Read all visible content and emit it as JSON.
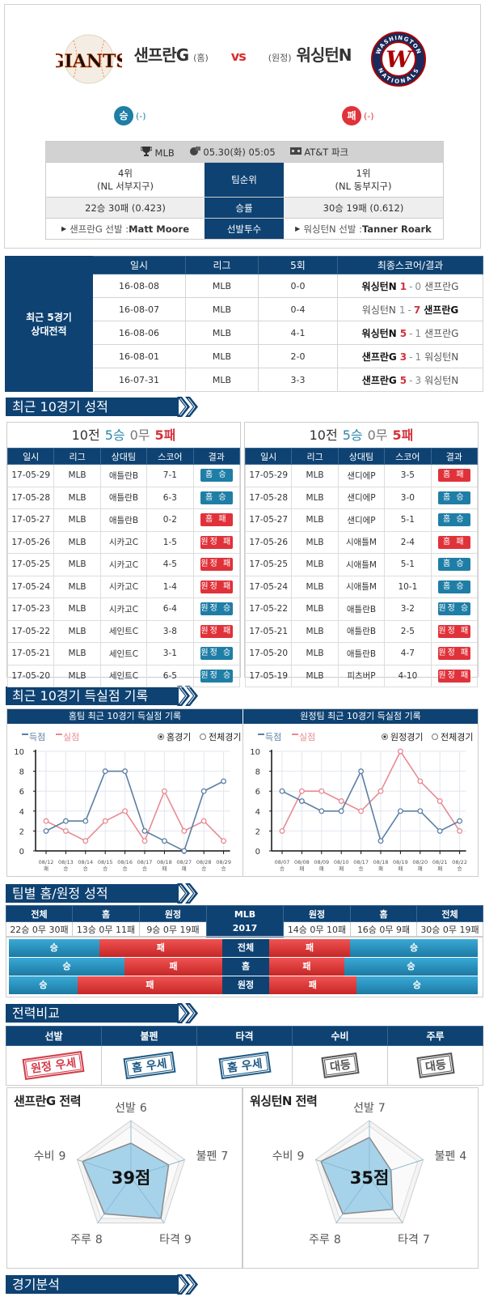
{
  "match": {
    "home": "샌프란G",
    "home_tag": "(홈)",
    "vs": "vs",
    "away_tag": "(원정)",
    "away": "워싱턴N",
    "home_logo_text": "GIANTS",
    "away_logo_ring_top": "WASHINGTON",
    "away_logo_ring_bottom": "NATIONALS",
    "away_logo_letter": "W",
    "home_result": "승",
    "home_result_note": "(-)",
    "away_result": "패",
    "away_result_note": "(-)",
    "colors": {
      "navy": "#0e4272",
      "win": "#1f7ea6",
      "loss": "#e0323a"
    }
  },
  "info": {
    "league": "MLB",
    "datetime": "05.30(화) 05:05",
    "stadium": "AT&T 파크",
    "rank_label": "팀순위",
    "home_rank": "4위",
    "home_div": "(NL 서부지구)",
    "away_rank": "1위",
    "away_div": "(NL 동부지구)",
    "pct_label": "승률",
    "home_record": "22승 30패 (0.423)",
    "away_record": "30승 19패 (0.612)",
    "pitcher_label": "선발투수",
    "home_pitcher_prefix": "샌프란G 선발 : ",
    "home_pitcher": "Matt Moore",
    "away_pitcher_prefix": "워싱턴N 선발 : ",
    "away_pitcher": "Tanner Roark"
  },
  "h2h": {
    "label_line1": "최근 5경기",
    "label_line2": "상대전적",
    "headers": [
      "일시",
      "리그",
      "5회",
      "최종스코어/결과"
    ],
    "rows": [
      {
        "date": "16-08-08",
        "league": "MLB",
        "inning5": "0-0",
        "left": "워싱턴N",
        "left_score": "1",
        "sep": "-",
        "right_score": "0",
        "right": "샌프란G",
        "winner": "left"
      },
      {
        "date": "16-08-07",
        "league": "MLB",
        "inning5": "0-4",
        "left": "워싱턴N",
        "left_score": "1",
        "sep": "-",
        "right_score": "7",
        "right": "샌프란G",
        "winner": "right"
      },
      {
        "date": "16-08-06",
        "league": "MLB",
        "inning5": "4-1",
        "left": "워싱턴N",
        "left_score": "5",
        "sep": "-",
        "right_score": "1",
        "right": "샌프란G",
        "winner": "left"
      },
      {
        "date": "16-08-01",
        "league": "MLB",
        "inning5": "2-0",
        "left": "샌프란G",
        "left_score": "3",
        "sep": "-",
        "right_score": "1",
        "right": "워싱턴N",
        "winner": "left"
      },
      {
        "date": "16-07-31",
        "league": "MLB",
        "inning5": "3-3",
        "left": "샌프란G",
        "left_score": "5",
        "sep": "-",
        "right_score": "3",
        "right": "워싱턴N",
        "winner": "left"
      }
    ]
  },
  "recent": {
    "section_title": "최근 10경기 성적",
    "headers": [
      "일시",
      "리그",
      "상대팀",
      "스코어",
      "결과"
    ],
    "teams": [
      {
        "summary": {
          "total": "10전",
          "w": "5승",
          "d": "0무",
          "l": "5패"
        },
        "rows": [
          {
            "date": "17-05-29",
            "league": "MLB",
            "opp": "애틀란B",
            "score": "7-1",
            "result": "홈 승",
            "outcome": "win"
          },
          {
            "date": "17-05-28",
            "league": "MLB",
            "opp": "애틀란B",
            "score": "6-3",
            "result": "홈 승",
            "outcome": "win"
          },
          {
            "date": "17-05-27",
            "league": "MLB",
            "opp": "애틀란B",
            "score": "0-2",
            "result": "홈 패",
            "outcome": "loss"
          },
          {
            "date": "17-05-26",
            "league": "MLB",
            "opp": "시카고C",
            "score": "1-5",
            "result": "원정 패",
            "outcome": "loss"
          },
          {
            "date": "17-05-25",
            "league": "MLB",
            "opp": "시카고C",
            "score": "4-5",
            "result": "원정 패",
            "outcome": "loss"
          },
          {
            "date": "17-05-24",
            "league": "MLB",
            "opp": "시카고C",
            "score": "1-4",
            "result": "원정 패",
            "outcome": "loss"
          },
          {
            "date": "17-05-23",
            "league": "MLB",
            "opp": "시카고C",
            "score": "6-4",
            "result": "원정 승",
            "outcome": "win"
          },
          {
            "date": "17-05-22",
            "league": "MLB",
            "opp": "세인트C",
            "score": "3-8",
            "result": "원정 패",
            "outcome": "loss"
          },
          {
            "date": "17-05-21",
            "league": "MLB",
            "opp": "세인트C",
            "score": "3-1",
            "result": "원정 승",
            "outcome": "win"
          },
          {
            "date": "17-05-20",
            "league": "MLB",
            "opp": "세인트C",
            "score": "6-5",
            "result": "원정 승",
            "outcome": "win"
          }
        ]
      },
      {
        "summary": {
          "total": "10전",
          "w": "5승",
          "d": "0무",
          "l": "5패"
        },
        "rows": [
          {
            "date": "17-05-29",
            "league": "MLB",
            "opp": "샌디에P",
            "score": "3-5",
            "result": "홈 패",
            "outcome": "loss"
          },
          {
            "date": "17-05-28",
            "league": "MLB",
            "opp": "샌디에P",
            "score": "3-0",
            "result": "홈 승",
            "outcome": "win"
          },
          {
            "date": "17-05-27",
            "league": "MLB",
            "opp": "샌디에P",
            "score": "5-1",
            "result": "홈 승",
            "outcome": "win"
          },
          {
            "date": "17-05-26",
            "league": "MLB",
            "opp": "시애틀M",
            "score": "2-4",
            "result": "홈 패",
            "outcome": "loss"
          },
          {
            "date": "17-05-25",
            "league": "MLB",
            "opp": "시애틀M",
            "score": "5-1",
            "result": "홈 승",
            "outcome": "win"
          },
          {
            "date": "17-05-24",
            "league": "MLB",
            "opp": "시애틀M",
            "score": "10-1",
            "result": "홈 승",
            "outcome": "win"
          },
          {
            "date": "17-05-22",
            "league": "MLB",
            "opp": "애틀란B",
            "score": "3-2",
            "result": "원정 승",
            "outcome": "win"
          },
          {
            "date": "17-05-21",
            "league": "MLB",
            "opp": "애틀란B",
            "score": "2-5",
            "result": "원정 패",
            "outcome": "loss"
          },
          {
            "date": "17-05-20",
            "league": "MLB",
            "opp": "애틀란B",
            "score": "4-7",
            "result": "원정 패",
            "outcome": "loss"
          },
          {
            "date": "17-05-19",
            "league": "MLB",
            "opp": "피츠버P",
            "score": "4-10",
            "result": "원정 패",
            "outcome": "loss"
          }
        ]
      }
    ]
  },
  "scoring_section_title": "최근 10경기 득실점 기록",
  "chart_data": [
    {
      "type": "line",
      "title": "홈팀 최근 10경기 득실점 기록",
      "radio": [
        "홈경기",
        "전체경기"
      ],
      "radio_selected": 0,
      "x": [
        "08/12",
        "08/13",
        "08/14",
        "08/15",
        "08/16",
        "08/17",
        "08/18",
        "08/27",
        "08/28",
        "08/29"
      ],
      "x_results": [
        "패",
        "승",
        "승",
        "승",
        "승",
        "승",
        "패",
        "패",
        "승",
        "승"
      ],
      "ylim": [
        0,
        10
      ],
      "yticks": [
        0,
        2,
        4,
        6,
        8,
        10
      ],
      "grid": true,
      "legend": "top-left",
      "series": [
        {
          "name": "득점",
          "color": "#5b7fa3",
          "values": [
            2,
            3,
            3,
            8,
            8,
            2,
            1,
            0,
            6,
            7
          ]
        },
        {
          "name": "실점",
          "color": "#e88a92",
          "values": [
            3,
            2,
            1,
            3,
            4,
            1,
            6,
            2,
            3,
            1
          ]
        }
      ]
    },
    {
      "type": "line",
      "title": "원정팀 최근 10경기 득실점 기록",
      "radio": [
        "원정경기",
        "전체경기"
      ],
      "radio_selected": 0,
      "x": [
        "08/07",
        "08/08",
        "08/09",
        "08/10",
        "08/17",
        "08/18",
        "08/19",
        "08/20",
        "08/21",
        "08/22"
      ],
      "x_results": [
        "승",
        "패",
        "패",
        "패",
        "승",
        "패",
        "패",
        "패",
        "패",
        "승"
      ],
      "ylim": [
        0,
        10
      ],
      "yticks": [
        0,
        2,
        4,
        6,
        8,
        10
      ],
      "grid": true,
      "legend": "top-left",
      "series": [
        {
          "name": "득점",
          "color": "#5b7fa3",
          "values": [
            6,
            5,
            4,
            4,
            8,
            1,
            4,
            4,
            2,
            3
          ]
        },
        {
          "name": "실점",
          "color": "#e88a92",
          "values": [
            2,
            6,
            6,
            5,
            4,
            6,
            10,
            7,
            5,
            2
          ]
        }
      ]
    }
  ],
  "team_records": {
    "section_title": "팀별 홈/원정 성적",
    "center": [
      "MLB",
      "2017"
    ],
    "home_headers": [
      "전체",
      "홈",
      "원정"
    ],
    "away_headers": [
      "원정",
      "홈",
      "전체"
    ],
    "home_values": [
      "22승 0무 30패",
      "13승 0무 11패",
      "9승 0무 19패"
    ],
    "away_values": [
      "14승 0무 10패",
      "16승 0무 9패",
      "30승 0무 19패"
    ],
    "win_label": "승",
    "loss_label": "패",
    "bars": [
      {
        "label": "전체",
        "home": [
          22,
          30
        ],
        "away": [
          30,
          19
        ]
      },
      {
        "label": "홈",
        "home": [
          13,
          11
        ],
        "away": [
          16,
          9
        ]
      },
      {
        "label": "원정",
        "home": [
          9,
          19
        ],
        "away": [
          14,
          10
        ]
      }
    ]
  },
  "strength": {
    "section_title": "전력비교",
    "items": [
      {
        "label": "선발",
        "verdict": "원정 우세",
        "type": "away"
      },
      {
        "label": "불펜",
        "verdict": "홈 우세",
        "type": "home"
      },
      {
        "label": "타격",
        "verdict": "홈 우세",
        "type": "home"
      },
      {
        "label": "수비",
        "verdict": "대등",
        "type": "even"
      },
      {
        "label": "주루",
        "verdict": "대등",
        "type": "even"
      }
    ]
  },
  "radar": [
    {
      "title": "샌프란G 전력",
      "total": "39점",
      "max": 10,
      "axes": [
        {
          "name": "선발",
          "value": 6
        },
        {
          "name": "불펜",
          "value": 7
        },
        {
          "name": "타격",
          "value": 9
        },
        {
          "name": "주루",
          "value": 8
        },
        {
          "name": "수비",
          "value": 9
        }
      ]
    },
    {
      "title": "워싱턴N 전력",
      "total": "35점",
      "max": 10,
      "axes": [
        {
          "name": "선발",
          "value": 7
        },
        {
          "name": "불펜",
          "value": 4
        },
        {
          "name": "타격",
          "value": 7
        },
        {
          "name": "주루",
          "value": 8
        },
        {
          "name": "수비",
          "value": 9
        }
      ]
    }
  ],
  "analysis": {
    "section_title": "경기분석"
  }
}
